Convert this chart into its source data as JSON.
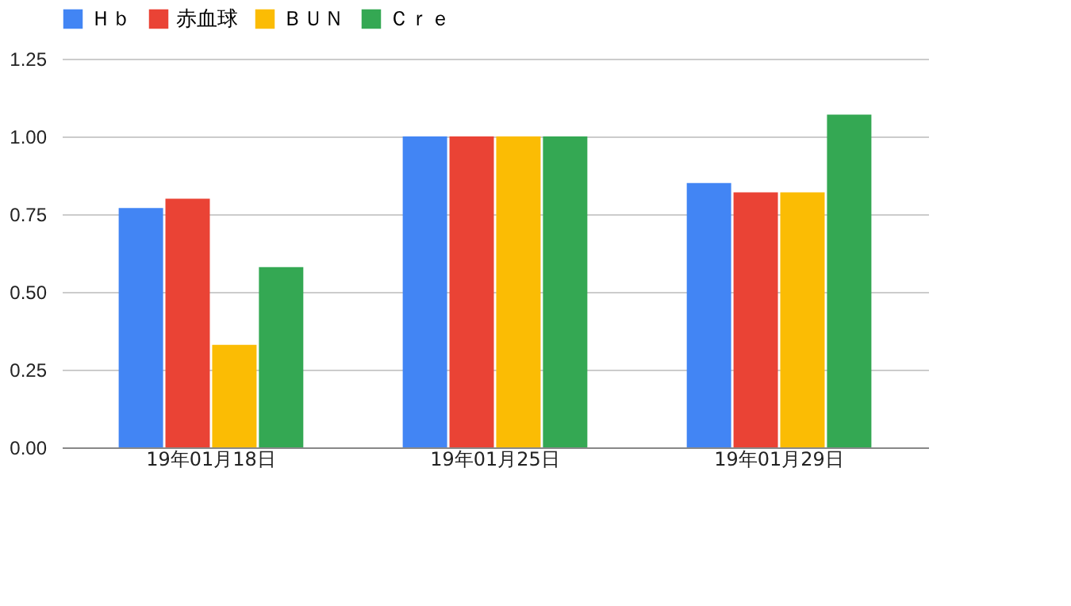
{
  "chart_data": {
    "type": "bar",
    "categories": [
      "19年01月18日",
      "19年01月25日",
      "19年01月29日"
    ],
    "series": [
      {
        "name": "Ｈｂ",
        "color": "#4285f4",
        "values": [
          0.77,
          1.0,
          0.85
        ]
      },
      {
        "name": "赤血球",
        "color": "#ea4335",
        "values": [
          0.8,
          1.0,
          0.82
        ]
      },
      {
        "name": "ＢＵＮ",
        "color": "#fbbc04",
        "values": [
          0.33,
          1.0,
          0.82
        ]
      },
      {
        "name": "Ｃｒｅ",
        "color": "#34a853",
        "values": [
          0.58,
          1.0,
          1.07
        ]
      }
    ],
    "ylim": [
      0,
      1.25
    ],
    "yticks": [
      {
        "value": 0,
        "label": "0.00"
      },
      {
        "value": 0.25,
        "label": "0.25"
      },
      {
        "value": 0.5,
        "label": "0.50"
      },
      {
        "value": 0.75,
        "label": "0.75"
      },
      {
        "value": 1,
        "label": "1.00"
      },
      {
        "value": 1.25,
        "label": "1.25"
      }
    ],
    "grid": "y",
    "legend": "top"
  }
}
